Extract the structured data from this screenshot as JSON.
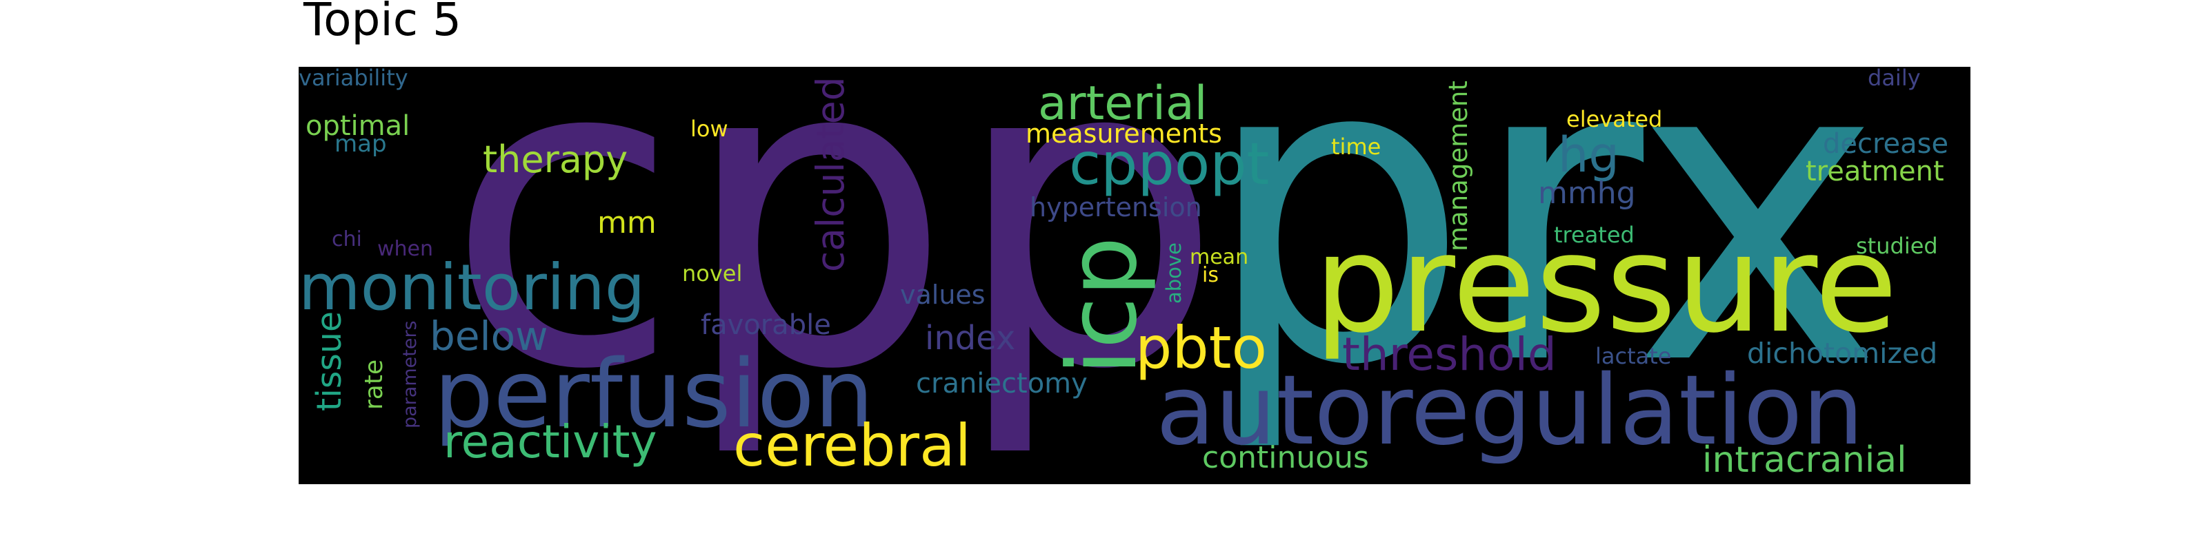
{
  "title": "Topic 5",
  "background_color": "#000000",
  "palette": [
    "#440154",
    "#472d7b",
    "#3b528b",
    "#2c728e",
    "#21918c",
    "#28ae80",
    "#5ec962",
    "#addc30",
    "#fde725"
  ],
  "words": [
    {
      "text": "cpp",
      "weight": 1.0,
      "color": "#482475",
      "orientation": "horizontal"
    },
    {
      "text": "prx",
      "weight": 0.98,
      "color": "#25858e",
      "orientation": "horizontal"
    },
    {
      "text": "pressure",
      "weight": 0.46,
      "color": "#bddf26",
      "orientation": "horizontal"
    },
    {
      "text": "autoregulation",
      "weight": 0.36,
      "color": "#3e4c8a",
      "orientation": "horizontal"
    },
    {
      "text": "perfusion",
      "weight": 0.34,
      "color": "#3b518b",
      "orientation": "horizontal"
    },
    {
      "text": "icp",
      "weight": 0.34,
      "color": "#4ac16d",
      "orientation": "vertical"
    },
    {
      "text": "monitoring",
      "weight": 0.23,
      "color": "#2a788e",
      "orientation": "horizontal"
    },
    {
      "text": "cerebral",
      "weight": 0.21,
      "color": "#fde725",
      "orientation": "horizontal"
    },
    {
      "text": "pbto",
      "weight": 0.2,
      "color": "#fde725",
      "orientation": "horizontal"
    },
    {
      "text": "cppopt",
      "weight": 0.2,
      "color": "#21918c",
      "orientation": "horizontal"
    },
    {
      "text": "reactivity",
      "weight": 0.17,
      "color": "#3dbc74",
      "orientation": "horizontal"
    },
    {
      "text": "threshold",
      "weight": 0.17,
      "color": "#482173",
      "orientation": "horizontal"
    },
    {
      "text": "arterial",
      "weight": 0.16,
      "color": "#5ec962",
      "orientation": "horizontal"
    },
    {
      "text": "hg",
      "weight": 0.16,
      "color": "#2c728e",
      "orientation": "horizontal"
    },
    {
      "text": "calculated",
      "weight": 0.15,
      "color": "#482173",
      "orientation": "vertical"
    },
    {
      "text": "intracranial",
      "weight": 0.14,
      "color": "#5ec962",
      "orientation": "horizontal"
    },
    {
      "text": "below",
      "weight": 0.14,
      "color": "#31688e",
      "orientation": "horizontal"
    },
    {
      "text": "therapy",
      "weight": 0.14,
      "color": "#a0da39",
      "orientation": "horizontal"
    },
    {
      "text": "index",
      "weight": 0.13,
      "color": "#433e85",
      "orientation": "horizontal"
    },
    {
      "text": "continuous",
      "weight": 0.12,
      "color": "#5ec962",
      "orientation": "horizontal"
    },
    {
      "text": "tissue",
      "weight": 0.12,
      "color": "#21a685",
      "orientation": "vertical"
    },
    {
      "text": "mm",
      "weight": 0.11,
      "color": "#d2e21b",
      "orientation": "horizontal"
    },
    {
      "text": "mmhg",
      "weight": 0.1,
      "color": "#3b528b",
      "orientation": "horizontal"
    },
    {
      "text": "dichotomized",
      "weight": 0.1,
      "color": "#2c728e",
      "orientation": "horizontal"
    },
    {
      "text": "craniectomy",
      "weight": 0.1,
      "color": "#2c728e",
      "orientation": "horizontal"
    },
    {
      "text": "decrease",
      "weight": 0.1,
      "color": "#2c728e",
      "orientation": "horizontal"
    },
    {
      "text": "treatment",
      "weight": 0.1,
      "color": "#86d549",
      "orientation": "horizontal"
    },
    {
      "text": "management",
      "weight": 0.1,
      "color": "#6ece58",
      "orientation": "vertical"
    },
    {
      "text": "hypertension",
      "weight": 0.09,
      "color": "#3e4a89",
      "orientation": "horizontal"
    },
    {
      "text": "measurements",
      "weight": 0.09,
      "color": "#fde725",
      "orientation": "horizontal"
    },
    {
      "text": "optimal",
      "weight": 0.09,
      "color": "#7ad151",
      "orientation": "horizontal"
    },
    {
      "text": "favorable",
      "weight": 0.09,
      "color": "#414287",
      "orientation": "horizontal"
    },
    {
      "text": "values",
      "weight": 0.09,
      "color": "#3b528b",
      "orientation": "horizontal"
    },
    {
      "text": "rate",
      "weight": 0.09,
      "color": "#7ad151",
      "orientation": "vertical"
    },
    {
      "text": "map",
      "weight": 0.08,
      "color": "#2a788e",
      "orientation": "horizontal"
    },
    {
      "text": "lactate",
      "weight": 0.08,
      "color": "#3b528b",
      "orientation": "horizontal"
    },
    {
      "text": "variability",
      "weight": 0.07,
      "color": "#31688e",
      "orientation": "horizontal"
    },
    {
      "text": "studied",
      "weight": 0.07,
      "color": "#5ec962",
      "orientation": "horizontal"
    },
    {
      "text": "treated",
      "weight": 0.07,
      "color": "#3dbc74",
      "orientation": "horizontal"
    },
    {
      "text": "elevated",
      "weight": 0.07,
      "color": "#fde725",
      "orientation": "horizontal"
    },
    {
      "text": "time",
      "weight": 0.07,
      "color": "#e5e419",
      "orientation": "horizontal"
    },
    {
      "text": "daily",
      "weight": 0.07,
      "color": "#414487",
      "orientation": "horizontal"
    },
    {
      "text": "novel",
      "weight": 0.07,
      "color": "#b5de2b",
      "orientation": "horizontal"
    },
    {
      "text": "low",
      "weight": 0.07,
      "color": "#fde725",
      "orientation": "horizontal"
    },
    {
      "text": "mean",
      "weight": 0.07,
      "color": "#c8e020",
      "orientation": "horizontal"
    },
    {
      "text": "is",
      "weight": 0.07,
      "color": "#fde725",
      "orientation": "horizontal"
    },
    {
      "text": "chi",
      "weight": 0.07,
      "color": "#472f7d",
      "orientation": "horizontal"
    },
    {
      "text": "when",
      "weight": 0.07,
      "color": "#482878",
      "orientation": "horizontal"
    },
    {
      "text": "above",
      "weight": 0.06,
      "color": "#28ae80",
      "orientation": "vertical"
    },
    {
      "text": "parameters",
      "weight": 0.06,
      "color": "#46337f",
      "orientation": "vertical"
    }
  ]
}
